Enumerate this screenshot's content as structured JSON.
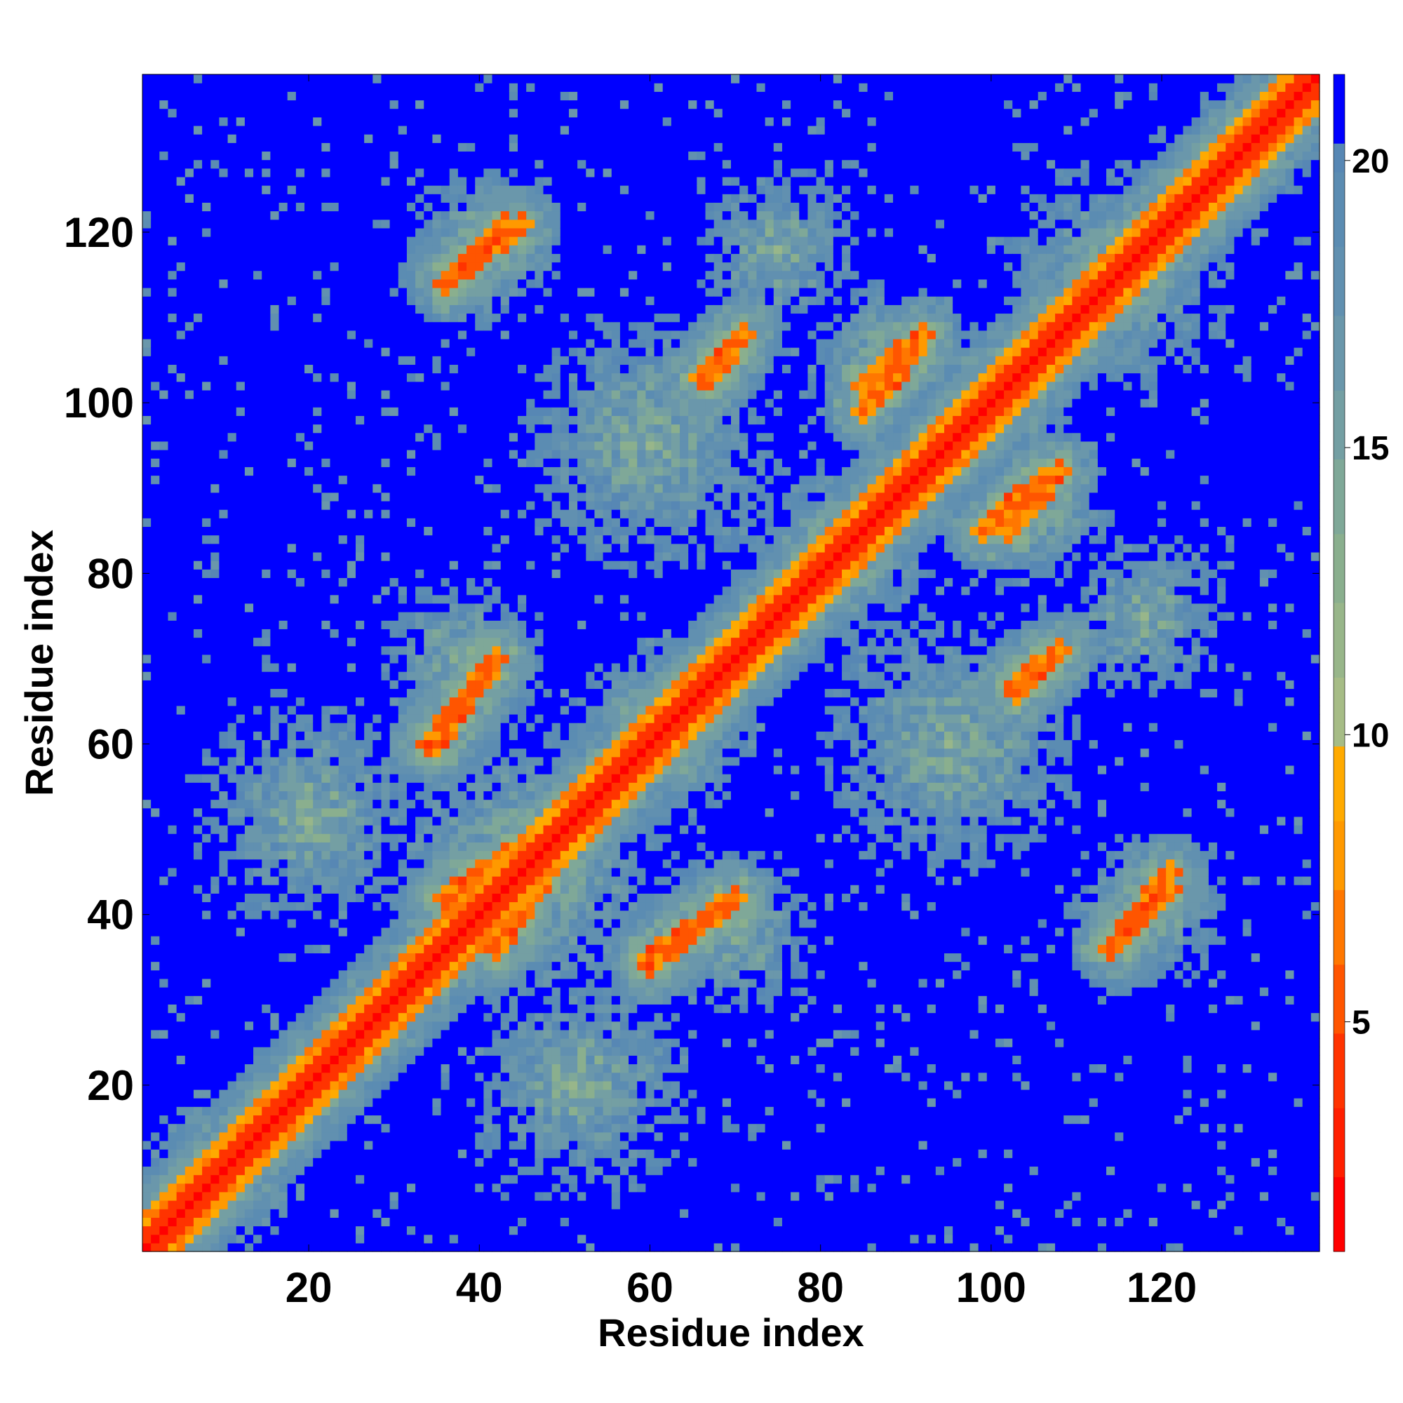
{
  "chart_data": {
    "type": "heatmap",
    "xlabel": "Residue index",
    "ylabel": "Residue index",
    "xlim": [
      0.5,
      138.5
    ],
    "ylim": [
      0.5,
      138.5
    ],
    "x_ticks": [
      20,
      40,
      60,
      80,
      100,
      120
    ],
    "y_ticks": [
      20,
      40,
      60,
      80,
      100,
      120
    ],
    "residue_count": 138,
    "colorbar": {
      "range": [
        1,
        21.5
      ],
      "ticks": [
        5,
        10,
        15,
        20
      ],
      "bands": [
        {
          "from": 1.0,
          "to": 2.3,
          "color": "#ff0000"
        },
        {
          "from": 2.3,
          "to": 3.5,
          "color": "#ff1f00"
        },
        {
          "from": 3.5,
          "to": 4.8,
          "color": "#ff3300"
        },
        {
          "from": 4.8,
          "to": 6.0,
          "color": "#ff5500"
        },
        {
          "from": 6.0,
          "to": 7.3,
          "color": "#ff7700"
        },
        {
          "from": 7.3,
          "to": 8.5,
          "color": "#ff9900"
        },
        {
          "from": 8.5,
          "to": 9.8,
          "color": "#ffaa00"
        },
        {
          "from": 9.8,
          "to": 11.0,
          "color": "#a6bc86"
        },
        {
          "from": 11.0,
          "to": 12.3,
          "color": "#98b68a"
        },
        {
          "from": 12.3,
          "to": 13.5,
          "color": "#8aaf8e"
        },
        {
          "from": 13.5,
          "to": 14.8,
          "color": "#7fa898"
        },
        {
          "from": 14.8,
          "to": 16.0,
          "color": "#749fa3"
        },
        {
          "from": 16.0,
          "to": 17.3,
          "color": "#6a97ab"
        },
        {
          "from": 17.3,
          "to": 18.5,
          "color": "#6190b0"
        },
        {
          "from": 18.5,
          "to": 19.8,
          "color": "#5b8cb2"
        },
        {
          "from": 19.8,
          "to": 20.3,
          "color": "#5787b4"
        },
        {
          "from": 20.3,
          "to": 21.5,
          "color": "#0000ff"
        }
      ]
    },
    "values_note": "",
    "secondary_structure_contacts": [
      {
        "x1": 37,
        "y1": 115,
        "x2": 43,
        "y2": 121
      },
      {
        "x1": 67,
        "y1": 103,
        "x2": 71,
        "y2": 108
      },
      {
        "x1": 85,
        "y1": 99,
        "x2": 91,
        "y2": 106
      },
      {
        "x1": 102,
        "y1": 85,
        "x2": 108,
        "y2": 92
      },
      {
        "x1": 76,
        "y1": 75,
        "x2": 85,
        "y2": 85
      },
      {
        "x1": 103,
        "y1": 66,
        "x2": 107,
        "y2": 70
      },
      {
        "x1": 114,
        "y1": 36,
        "x2": 121,
        "y2": 45
      },
      {
        "x1": 60,
        "y1": 34,
        "x2": 70,
        "y2": 42
      },
      {
        "x1": 35,
        "y1": 60,
        "x2": 42,
        "y2": 70
      },
      {
        "x1": 42,
        "y1": 36,
        "x2": 48,
        "y2": 45
      },
      {
        "x1": 1,
        "y1": 1,
        "x2": 8,
        "y2": 6
      },
      {
        "x1": 122,
        "y1": 124,
        "x2": 137,
        "y2": 136
      }
    ]
  },
  "colors": {
    "far": "#0000ff",
    "near": "#ff0000",
    "mid": "#ffaa00"
  }
}
